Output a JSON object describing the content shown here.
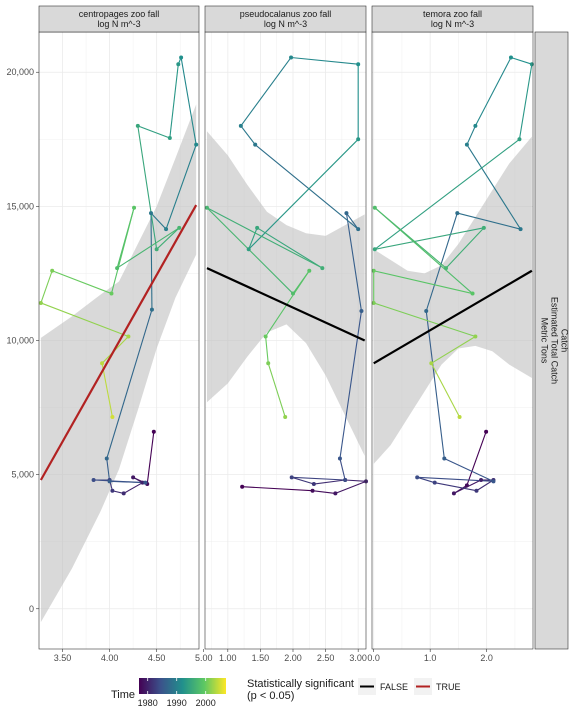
{
  "chart_data": {
    "type": "line",
    "y_axis": {
      "range": [
        -1500,
        21500
      ],
      "ticks": [
        0,
        5000,
        10000,
        15000,
        20000
      ],
      "tick_labels": [
        "0",
        "5,000",
        "10,000",
        "15,000",
        "20,000"
      ]
    },
    "right_strip": {
      "lines": [
        "Catch",
        "Estimated Total Catch",
        "Metric Tons"
      ]
    },
    "color_scale": {
      "name": "viridis",
      "from_year": 1977,
      "to_year": 2007,
      "colors": [
        "#440154",
        "#3b528b",
        "#21908c",
        "#5dc863",
        "#fde725"
      ]
    },
    "legend": {
      "time_title": "Time",
      "time_ticks": [
        1980,
        1990,
        2000
      ],
      "time_tick_labels": [
        "1980",
        "1990",
        "2000"
      ],
      "sig_title_line1": "Statistically significant",
      "sig_title_line2": "(p < 0.05)",
      "sig_entries": [
        {
          "label": "FALSE",
          "color": "#000000"
        },
        {
          "label": "TRUE",
          "color": "#b22222"
        }
      ]
    },
    "grid": true,
    "panels": [
      {
        "strip": [
          "centropages zoo fall",
          "log N m^-3"
        ],
        "x_range": [
          3.25,
          4.95
        ],
        "x_ticks": [
          3.5,
          4.0,
          4.5,
          5.0
        ],
        "x_tick_labels": [
          "3.50",
          "4.00",
          "4.50",
          "5.00"
        ],
        "significant": true,
        "fit": {
          "x0": 3.27,
          "y0": 4800,
          "x1": 4.92,
          "y1": 15050
        },
        "band": [
          {
            "x": 3.27,
            "lo": -500,
            "hi": 10100
          },
          {
            "x": 3.6,
            "lo": 1500,
            "hi": 10900
          },
          {
            "x": 3.9,
            "lo": 3600,
            "hi": 11700
          },
          {
            "x": 4.1,
            "lo": 5200,
            "hi": 12200
          },
          {
            "x": 4.3,
            "lo": 7400,
            "hi": 13600
          },
          {
            "x": 4.5,
            "lo": 9700,
            "hi": 15000
          },
          {
            "x": 4.7,
            "lo": 11600,
            "hi": 16800
          },
          {
            "x": 4.92,
            "lo": 13200,
            "hi": 18800
          }
        ],
        "points": [
          {
            "x": 4.47,
            "y": 6600
          },
          {
            "x": 4.4,
            "y": 4650
          },
          {
            "x": 4.25,
            "y": 4900
          },
          {
            "x": 4.35,
            "y": 4700
          },
          {
            "x": 4.15,
            "y": 4300
          },
          {
            "x": 4.03,
            "y": 4400
          },
          {
            "x": 4.0,
            "y": 4800
          },
          {
            "x": 3.83,
            "y": 4800
          },
          {
            "x": 4.38,
            "y": 4700
          },
          {
            "x": 4.0,
            "y": 4750
          },
          {
            "x": 3.97,
            "y": 5600
          },
          {
            "x": 4.45,
            "y": 11150
          },
          {
            "x": 4.44,
            "y": 14750
          },
          {
            "x": 4.6,
            "y": 14150
          },
          {
            "x": 4.92,
            "y": 17300
          },
          {
            "x": 4.76,
            "y": 20550
          },
          {
            "x": 4.73,
            "y": 20300
          },
          {
            "x": 4.64,
            "y": 17550
          },
          {
            "x": 4.3,
            "y": 18000
          },
          {
            "x": 4.5,
            "y": 13400
          },
          {
            "x": 4.74,
            "y": 14200
          },
          {
            "x": 4.08,
            "y": 12700
          },
          {
            "x": 4.26,
            "y": 14950
          },
          {
            "x": 4.02,
            "y": 11750
          },
          {
            "x": 3.39,
            "y": 12600
          },
          {
            "x": 3.27,
            "y": 11400
          },
          {
            "x": 4.2,
            "y": 10150
          },
          {
            "x": 3.92,
            "y": 9150
          },
          {
            "x": 4.03,
            "y": 7150
          }
        ]
      },
      {
        "strip": [
          "pseudocalanus zoo fall",
          "log N m^-3"
        ],
        "x_range": [
          0.65,
          3.12
        ],
        "x_ticks": [
          1.0,
          1.5,
          2.0,
          2.5,
          3.0
        ],
        "x_tick_labels": [
          "1.00",
          "1.50",
          "2.00",
          "2.50",
          "3.00"
        ],
        "significant": false,
        "fit": {
          "x0": 0.68,
          "y0": 12700,
          "x1": 3.1,
          "y1": 10000
        },
        "band": [
          {
            "x": 0.68,
            "lo": 7700,
            "hi": 17800
          },
          {
            "x": 1.0,
            "lo": 8400,
            "hi": 16900
          },
          {
            "x": 1.3,
            "lo": 9400,
            "hi": 15800
          },
          {
            "x": 1.6,
            "lo": 10300,
            "hi": 14800
          },
          {
            "x": 1.9,
            "lo": 10600,
            "hi": 14300
          },
          {
            "x": 2.2,
            "lo": 9900,
            "hi": 14000
          },
          {
            "x": 2.5,
            "lo": 8700,
            "hi": 13900
          },
          {
            "x": 2.8,
            "lo": 7200,
            "hi": 14300
          },
          {
            "x": 3.1,
            "lo": 5700,
            "hi": 14700
          }
        ],
        "points": [
          {
            "x": 1.22,
            "y": 4550
          },
          {
            "x": 2.3,
            "y": 4400
          },
          {
            "x": 2.65,
            "y": 4300
          },
          {
            "x": 3.12,
            "y": 4750
          },
          {
            "x": 2.8,
            "y": 4800
          },
          {
            "x": 2.32,
            "y": 4650
          },
          {
            "x": 1.98,
            "y": 4900
          },
          {
            "x": 2.8,
            "y": 4800
          },
          {
            "x": 2.72,
            "y": 5600
          },
          {
            "x": 3.05,
            "y": 11100
          },
          {
            "x": 2.82,
            "y": 14750
          },
          {
            "x": 3.0,
            "y": 14150
          },
          {
            "x": 1.42,
            "y": 17300
          },
          {
            "x": 1.2,
            "y": 18000
          },
          {
            "x": 1.97,
            "y": 20550
          },
          {
            "x": 3.0,
            "y": 20300
          },
          {
            "x": 3.0,
            "y": 17500
          },
          {
            "x": 1.32,
            "y": 13400
          },
          {
            "x": 1.45,
            "y": 14200
          },
          {
            "x": 2.45,
            "y": 12700
          },
          {
            "x": 0.68,
            "y": 14950
          },
          {
            "x": 2.0,
            "y": 11750
          },
          {
            "x": 2.25,
            "y": 12600
          },
          {
            "x": 1.58,
            "y": 10150
          },
          {
            "x": 1.62,
            "y": 9150
          },
          {
            "x": 1.88,
            "y": 7150
          }
        ]
      },
      {
        "strip": [
          "temora zoo fall",
          "log N m^-3"
        ],
        "x_range": [
          -0.03,
          2.82
        ],
        "x_ticks": [
          0.0,
          1.0,
          2.0
        ],
        "x_tick_labels": [
          "0.0",
          "1.0",
          "2.0"
        ],
        "significant": false,
        "fit": {
          "x0": 0.0,
          "y0": 9150,
          "x1": 2.8,
          "y1": 12600
        },
        "band": [
          {
            "x": 0.0,
            "lo": 5400,
            "hi": 13400
          },
          {
            "x": 0.3,
            "lo": 6100,
            "hi": 13000
          },
          {
            "x": 0.6,
            "lo": 7100,
            "hi": 12600
          },
          {
            "x": 0.9,
            "lo": 8100,
            "hi": 12500
          },
          {
            "x": 1.2,
            "lo": 9100,
            "hi": 12800
          },
          {
            "x": 1.5,
            "lo": 9700,
            "hi": 13600
          },
          {
            "x": 1.8,
            "lo": 9800,
            "hi": 14600
          },
          {
            "x": 2.1,
            "lo": 9600,
            "hi": 15600
          },
          {
            "x": 2.4,
            "lo": 9100,
            "hi": 16600
          },
          {
            "x": 2.8,
            "lo": 8600,
            "hi": 17600
          }
        ],
        "points": [
          {
            "x": 1.99,
            "y": 6600
          },
          {
            "x": 1.65,
            "y": 4600
          },
          {
            "x": 1.42,
            "y": 4300
          },
          {
            "x": 1.9,
            "y": 4800
          },
          {
            "x": 2.12,
            "y": 4800
          },
          {
            "x": 1.82,
            "y": 4400
          },
          {
            "x": 1.08,
            "y": 4700
          },
          {
            "x": 0.77,
            "y": 4900
          },
          {
            "x": 2.12,
            "y": 4750
          },
          {
            "x": 1.25,
            "y": 5600
          },
          {
            "x": 0.93,
            "y": 11100
          },
          {
            "x": 1.48,
            "y": 14750
          },
          {
            "x": 2.6,
            "y": 14150
          },
          {
            "x": 1.65,
            "y": 17300
          },
          {
            "x": 1.8,
            "y": 18000
          },
          {
            "x": 2.43,
            "y": 20550
          },
          {
            "x": 2.8,
            "y": 20300
          },
          {
            "x": 2.58,
            "y": 17500
          },
          {
            "x": 0.02,
            "y": 13400
          },
          {
            "x": 1.95,
            "y": 14200
          },
          {
            "x": 1.28,
            "y": 12700
          },
          {
            "x": 0.02,
            "y": 14950
          },
          {
            "x": 1.75,
            "y": 11750
          },
          {
            "x": 0.0,
            "y": 12600
          },
          {
            "x": 0.0,
            "y": 11400
          },
          {
            "x": 1.8,
            "y": 10150
          },
          {
            "x": 1.02,
            "y": 9150
          },
          {
            "x": 1.52,
            "y": 7150
          }
        ]
      }
    ]
  }
}
